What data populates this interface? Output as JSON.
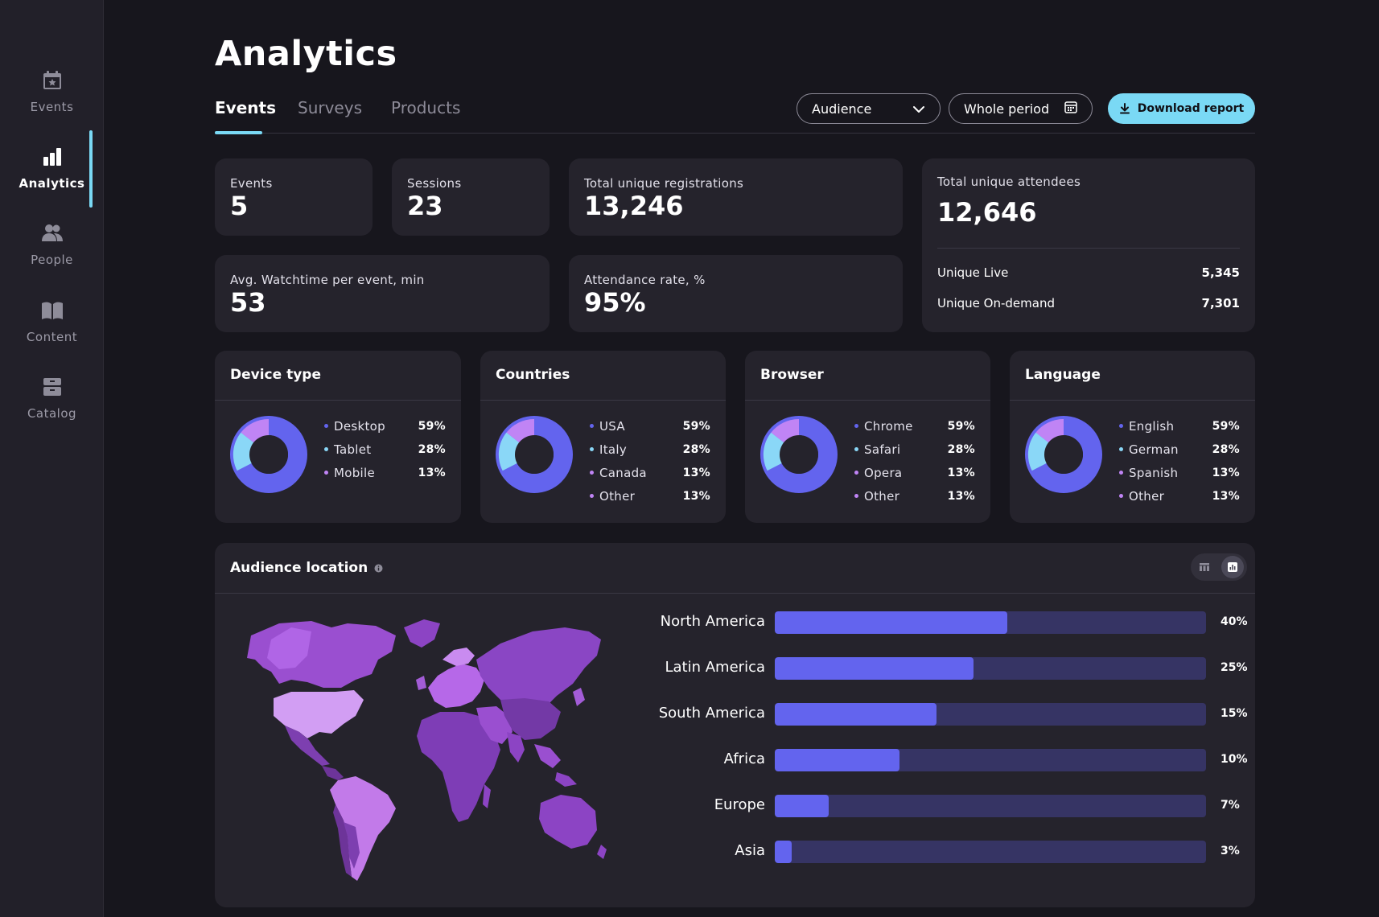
{
  "sidebar": {
    "items": [
      {
        "label": "Events",
        "icon": "calendar-icon"
      },
      {
        "label": "Analytics",
        "icon": "bar-chart-icon",
        "active": true
      },
      {
        "label": "People",
        "icon": "people-icon"
      },
      {
        "label": "Content",
        "icon": "book-icon"
      },
      {
        "label": "Catalog",
        "icon": "catalog-icon"
      }
    ]
  },
  "header": {
    "title": "Analytics",
    "tabs": [
      {
        "label": "Events",
        "active": true
      },
      {
        "label": "Surveys"
      },
      {
        "label": "Products"
      }
    ],
    "audience_select": {
      "value": "Audience",
      "icon": "chevron-down-icon"
    },
    "period_select": {
      "value": "Whole period",
      "icon": "calendar-icon"
    },
    "download_label": "Download report"
  },
  "stats": {
    "events": {
      "label": "Events",
      "value": "5"
    },
    "sessions": {
      "label": "Sessions",
      "value": "23"
    },
    "registrations": {
      "label": "Total unique registrations",
      "value": "13,246"
    },
    "watchtime": {
      "label": "Avg. Watchtime per event, min",
      "value": "53"
    },
    "attendance": {
      "label": "Attendance rate, %",
      "value": "95%"
    },
    "attendees": {
      "label": "Total unique attendees",
      "value": "12,646",
      "live_label": "Unique Live",
      "live_value": "5,345",
      "ondemand_label": "Unique On-demand",
      "ondemand_value": "7,301"
    }
  },
  "colors": {
    "primary_segment": "#6364ee",
    "secondary_segment": "#8ad7f7",
    "tertiary_segment": "#c084f5",
    "accent": "#7ad9f5",
    "bar_track": "#363464"
  },
  "breakdowns": [
    {
      "title": "Device type",
      "items": [
        {
          "name": "Desktop",
          "pct": "59%"
        },
        {
          "name": "Tablet",
          "pct": "28%"
        },
        {
          "name": "Mobile",
          "pct": "13%"
        }
      ]
    },
    {
      "title": "Countries",
      "items": [
        {
          "name": "USA",
          "pct": "59%"
        },
        {
          "name": "Italy",
          "pct": "28%"
        },
        {
          "name": "Canada",
          "pct": "13%"
        },
        {
          "name": "Other",
          "pct": "13%"
        }
      ]
    },
    {
      "title": "Browser",
      "items": [
        {
          "name": "Chrome",
          "pct": "59%"
        },
        {
          "name": "Safari",
          "pct": "28%"
        },
        {
          "name": "Opera",
          "pct": "13%"
        },
        {
          "name": "Other",
          "pct": "13%"
        }
      ]
    },
    {
      "title": "Language",
      "items": [
        {
          "name": "English",
          "pct": "59%"
        },
        {
          "name": "German",
          "pct": "28%"
        },
        {
          "name": "Spanish",
          "pct": "13%"
        },
        {
          "name": "Other",
          "pct": "13%"
        }
      ]
    }
  ],
  "audience_location": {
    "title": "Audience location",
    "view_options": [
      "table-view-icon",
      "chart-view-icon"
    ],
    "active_view": "chart-view-icon",
    "regions": [
      {
        "name": "North America",
        "pct": "40%",
        "fill": 0.54
      },
      {
        "name": "Latin America",
        "pct": "25%",
        "fill": 0.46
      },
      {
        "name": "South America",
        "pct": "15%",
        "fill": 0.375
      },
      {
        "name": "Africa",
        "pct": "10%",
        "fill": 0.29
      },
      {
        "name": "Europe",
        "pct": "7%",
        "fill": 0.125
      },
      {
        "name": "Asia",
        "pct": "3%",
        "fill": 0.04
      }
    ]
  }
}
